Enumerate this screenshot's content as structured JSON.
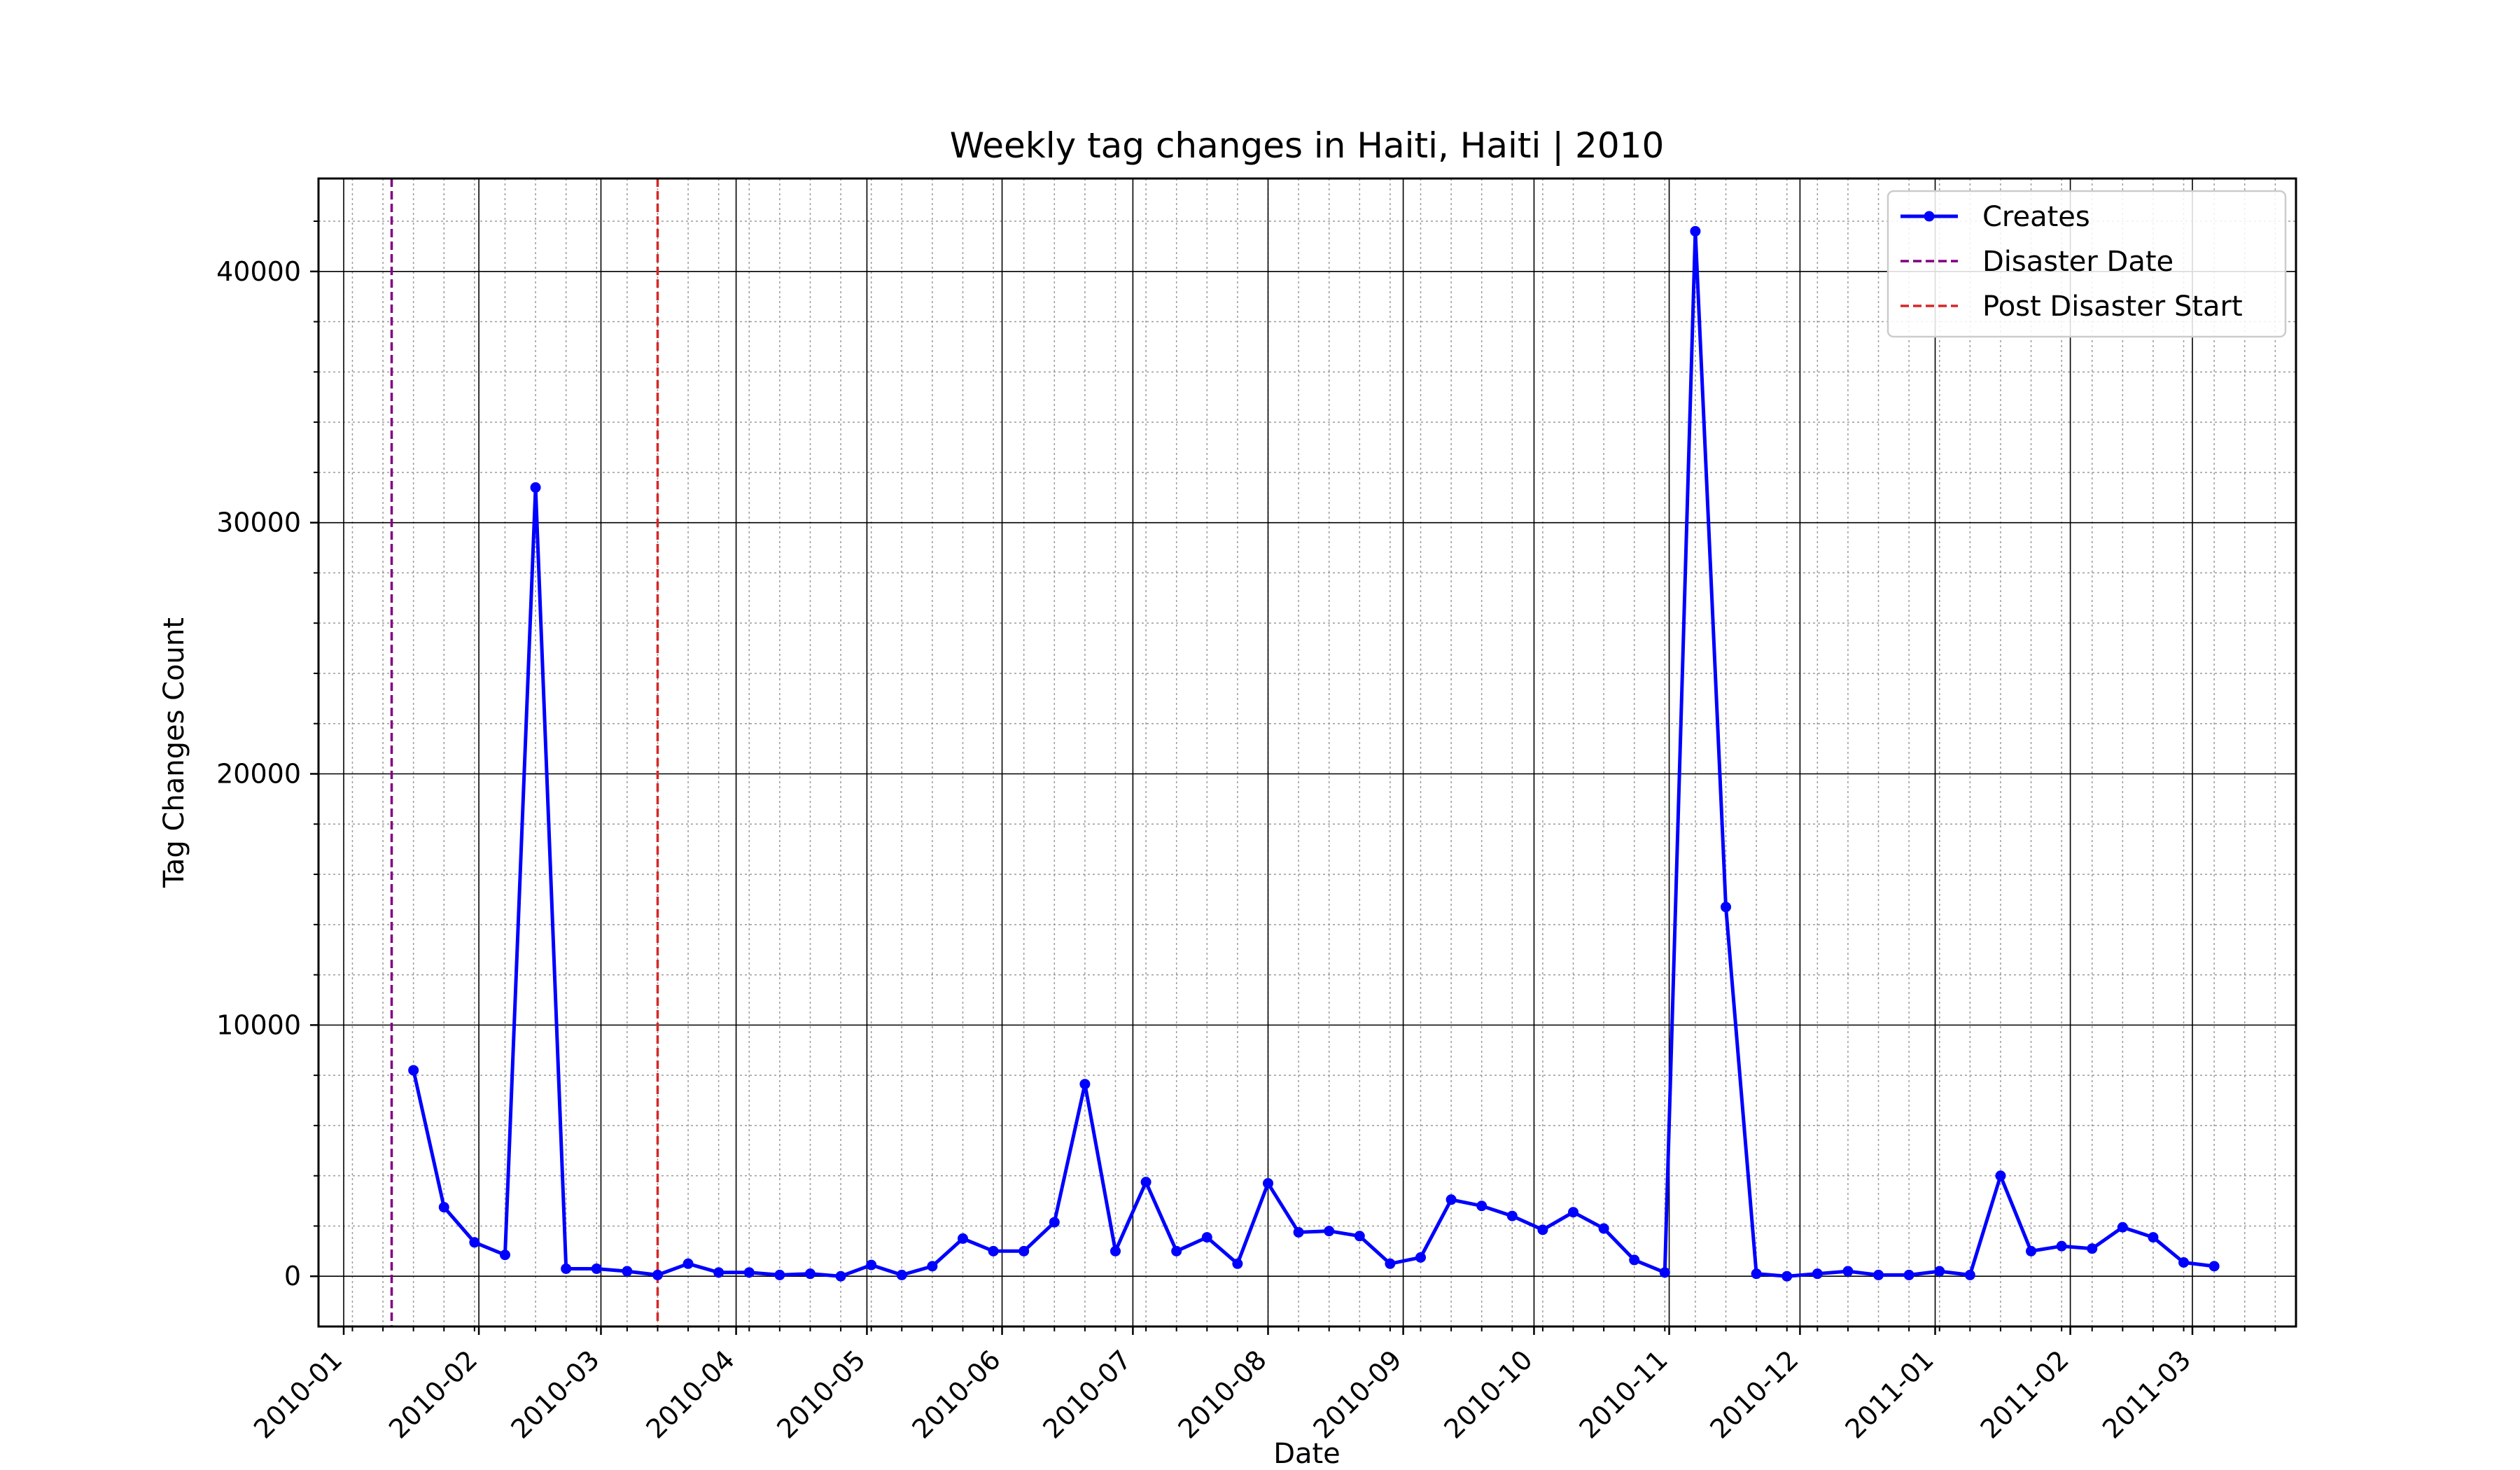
{
  "chart_data": {
    "type": "line",
    "title": "Weekly tag changes in Haiti, Haiti | 2010",
    "xlabel": "Date",
    "ylabel": "Tag Changes Count",
    "x_ticks": [
      "2010-01",
      "2010-02",
      "2010-03",
      "2010-04",
      "2010-05",
      "2010-06",
      "2010-07",
      "2010-08",
      "2010-09",
      "2010-10",
      "2010-11",
      "2010-12",
      "2011-01",
      "2011-02",
      "2011-03"
    ],
    "y_ticks": [
      0,
      10000,
      20000,
      30000,
      40000
    ],
    "ylim": [
      -2000,
      43700
    ],
    "grid": true,
    "legend": {
      "position": "top-right",
      "entries": [
        {
          "label": "Creates",
          "style": "line-marker",
          "color": "#0000ff"
        },
        {
          "label": "Disaster Date",
          "style": "dashed",
          "color": "#800080"
        },
        {
          "label": "Post Disaster Start",
          "style": "dashed",
          "color": "#d62728"
        }
      ]
    },
    "vlines": [
      {
        "name": "Disaster Date",
        "x": "2010-01-12",
        "color": "#800080"
      },
      {
        "name": "Post Disaster Start",
        "x": "2010-03-14",
        "color": "#d62728"
      }
    ],
    "series": [
      {
        "name": "Creates",
        "color": "#0000ff",
        "x": [
          "2010-01-17",
          "2010-01-24",
          "2010-01-31",
          "2010-02-07",
          "2010-02-14",
          "2010-02-21",
          "2010-02-28",
          "2010-03-07",
          "2010-03-14",
          "2010-03-21",
          "2010-03-28",
          "2010-04-04",
          "2010-04-11",
          "2010-04-18",
          "2010-04-25",
          "2010-05-02",
          "2010-05-09",
          "2010-05-16",
          "2010-05-23",
          "2010-05-30",
          "2010-06-06",
          "2010-06-13",
          "2010-06-20",
          "2010-06-27",
          "2010-07-04",
          "2010-07-11",
          "2010-07-18",
          "2010-07-25",
          "2010-08-01",
          "2010-08-08",
          "2010-08-15",
          "2010-08-22",
          "2010-08-29",
          "2010-09-05",
          "2010-09-12",
          "2010-09-19",
          "2010-09-26",
          "2010-10-03",
          "2010-10-10",
          "2010-10-17",
          "2010-10-24",
          "2010-10-31",
          "2010-11-07",
          "2010-11-14",
          "2010-11-21",
          "2010-11-28",
          "2010-12-05",
          "2010-12-12",
          "2010-12-19",
          "2010-12-26",
          "2011-01-02",
          "2011-01-09",
          "2011-01-16",
          "2011-01-23",
          "2011-01-30",
          "2011-02-06",
          "2011-02-13",
          "2011-02-20",
          "2011-02-27",
          "2011-03-06"
        ],
        "values": [
          8200,
          2750,
          1350,
          850,
          31400,
          300,
          300,
          200,
          50,
          500,
          150,
          150,
          50,
          100,
          0,
          450,
          50,
          400,
          1500,
          1000,
          1000,
          2150,
          7650,
          1000,
          3750,
          1000,
          1550,
          500,
          3700,
          1750,
          1800,
          1600,
          500,
          750,
          3050,
          2800,
          2400,
          1850,
          2550,
          1900,
          650,
          150,
          41600,
          14700,
          100,
          0,
          100,
          200,
          50,
          50,
          200,
          50,
          4000,
          1000,
          1200,
          1100,
          1950,
          1550,
          550,
          400
        ]
      }
    ]
  }
}
